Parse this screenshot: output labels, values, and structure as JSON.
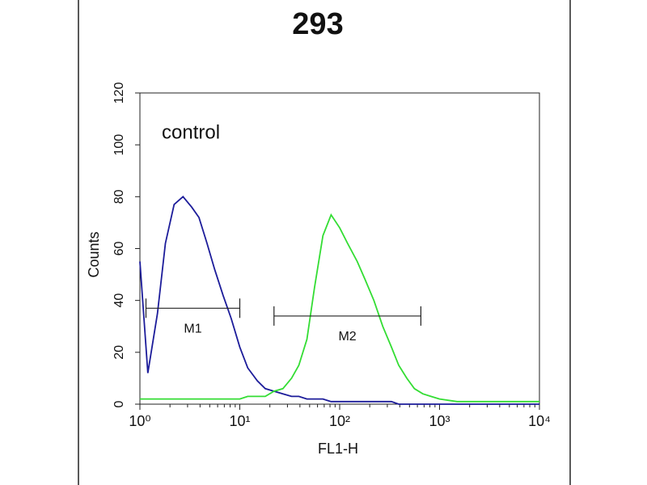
{
  "chart_data": {
    "type": "line",
    "title": "293",
    "x_label": "FL1-H",
    "y_label": "Counts",
    "annotation": "control",
    "log_x": true,
    "xlim": [
      1,
      10000
    ],
    "xticks": [
      {
        "value": 1,
        "label": "10⁰"
      },
      {
        "value": 10,
        "label": "10¹"
      },
      {
        "value": 100,
        "label": "10²"
      },
      {
        "value": 1000,
        "label": "10³"
      },
      {
        "value": 10000,
        "label": "10⁴"
      }
    ],
    "ylim": [
      0,
      120
    ],
    "yticks": [
      0,
      20,
      40,
      60,
      80,
      100,
      120
    ],
    "x": [
      1,
      1.2,
      1.5,
      1.8,
      2.2,
      2.7,
      3.3,
      3.9,
      4.7,
      5.6,
      6.8,
      8.2,
      10,
      12,
      15,
      18,
      22,
      27,
      33,
      39,
      47,
      56,
      68,
      82,
      100,
      120,
      150,
      180,
      220,
      270,
      330,
      390,
      470,
      560,
      680,
      820,
      1000,
      1500,
      2200,
      3300,
      4700,
      6800,
      10000
    ],
    "series": [
      {
        "color": "#1c1c9a",
        "values": [
          55,
          12,
          35,
          62,
          77,
          80,
          76,
          72,
          62,
          52,
          42,
          33,
          22,
          14,
          9,
          6,
          5,
          4,
          3,
          3,
          2,
          2,
          2,
          1,
          1,
          1,
          1,
          1,
          1,
          1,
          1,
          0,
          0,
          0,
          0,
          0,
          0,
          0,
          0,
          0,
          0,
          0,
          0
        ]
      },
      {
        "color": "#33dd33",
        "values": [
          2,
          2,
          2,
          2,
          2,
          2,
          2,
          2,
          2,
          2,
          2,
          2,
          2,
          3,
          3,
          3,
          5,
          6,
          10,
          15,
          25,
          45,
          65,
          73,
          68,
          62,
          55,
          48,
          40,
          30,
          22,
          15,
          10,
          6,
          4,
          3,
          2,
          1,
          1,
          1,
          1,
          1,
          1
        ]
      }
    ],
    "markers": [
      {
        "label": "M1",
        "range": [
          1.15,
          10
        ],
        "level": 37
      },
      {
        "label": "M2",
        "range": [
          22,
          650
        ],
        "level": 34
      }
    ]
  }
}
